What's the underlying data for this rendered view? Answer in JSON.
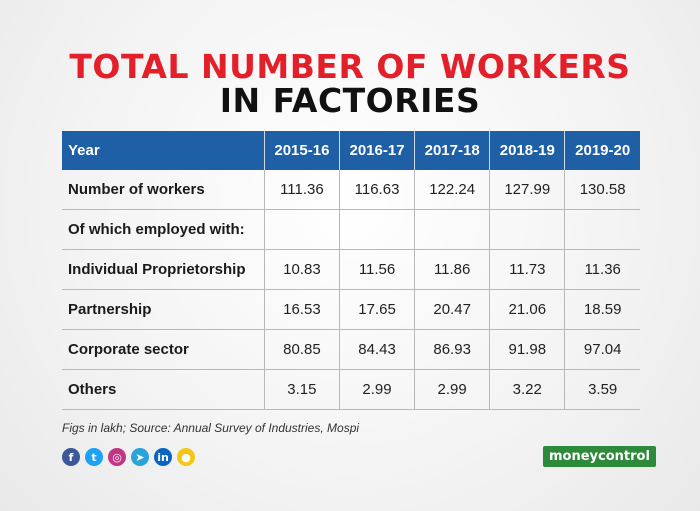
{
  "title": {
    "line1": "TOTAL NUMBER OF WORKERS",
    "line2": "IN FACTORIES"
  },
  "chart_data": {
    "type": "table",
    "header": [
      "Year",
      "2015-16",
      "2016-17",
      "2017-18",
      "2018-19",
      "2019-20"
    ],
    "rows": [
      [
        "Number of workers",
        "111.36",
        "116.63",
        "122.24",
        "127.99",
        "130.58"
      ],
      [
        "Of which employed with:",
        "",
        "",
        "",
        "",
        ""
      ],
      [
        "Individual Proprietorship",
        "10.83",
        "11.56",
        "11.86",
        "11.73",
        "11.36"
      ],
      [
        "Partnership",
        "16.53",
        "17.65",
        "20.47",
        "21.06",
        "18.59"
      ],
      [
        "Corporate sector",
        "80.85",
        "84.43",
        "86.93",
        "91.98",
        "97.04"
      ],
      [
        "Others",
        "3.15",
        "2.99",
        "2.99",
        "3.22",
        "3.59"
      ]
    ]
  },
  "note": "Figs in lakh; Source: Annual Survey of Industries, Mospi",
  "social": [
    {
      "icon": "facebook-icon",
      "glyph": "f",
      "color": "#3b5998"
    },
    {
      "icon": "twitter-icon",
      "glyph": "t",
      "color": "#1da1f2"
    },
    {
      "icon": "instagram-icon",
      "glyph": "◎",
      "color": "#c13584"
    },
    {
      "icon": "telegram-icon",
      "glyph": "➤",
      "color": "#2aa3d9"
    },
    {
      "icon": "linkedin-icon",
      "glyph": "in",
      "color": "#0a66c2"
    },
    {
      "icon": "koo-icon",
      "glyph": "●",
      "color": "#f5c518"
    }
  ],
  "brand": "moneycontrol"
}
